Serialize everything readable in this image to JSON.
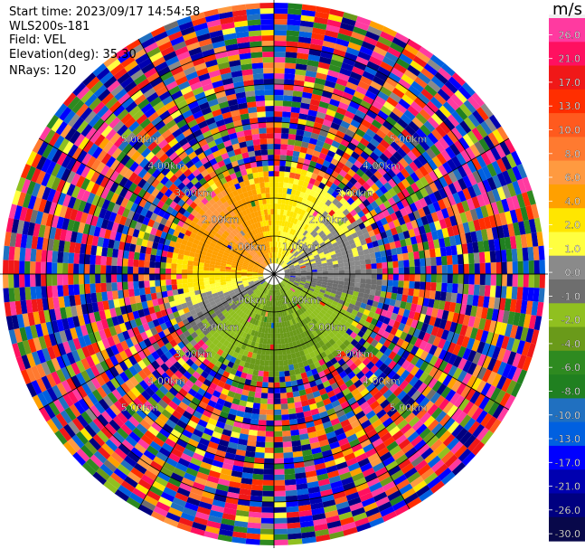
{
  "info": {
    "start_time": "Start time: 2023/09/17 14:54:58",
    "site": "WLS200s-181",
    "field": "Field: VEL",
    "elevation": "Elevation(deg): 35.30",
    "nrays": "NRays: 120"
  },
  "colorbar": {
    "unit": "m/s",
    "labels": [
      "26.0",
      "21.0",
      "17.0",
      "13.0",
      "10.0",
      "8.0",
      "6.0",
      "4.0",
      "2.0",
      "1.0",
      "0.0",
      "-1.0",
      "-2.0",
      "-4.0",
      "-6.0",
      "-8.0",
      "-10.0",
      "-13.0",
      "-17.0",
      "-21.0",
      "-26.0",
      "-30.0"
    ],
    "colors": [
      "#f0f0f0",
      "#ff3aa0",
      "#ff1060",
      "#f01818",
      "#ff2e00",
      "#ff5a1e",
      "#ff7a30",
      "#ff9a40",
      "#ffa000",
      "#ffe600",
      "#ffff40",
      "#8a8a8a",
      "#6e6e6e",
      "#90c020",
      "#6a9a1a",
      "#2e8a20",
      "#208020",
      "#2070c0",
      "#0060e0",
      "#0000ff",
      "#0000b0",
      "#000080",
      "#08084a"
    ]
  },
  "chart_data": {
    "type": "polar",
    "field": "VEL",
    "units": "m/s",
    "nrays": 120,
    "elevation_deg": 35.3,
    "range_labels_km": [
      "1.00km",
      "2.00km",
      "3.00km",
      "4.00km",
      "5.00km"
    ],
    "ring_labels": [
      {
        "ring": 1,
        "text": "1.00km"
      },
      {
        "ring": 2,
        "text": "2.00km"
      },
      {
        "ring": 3,
        "text": "3.00km"
      },
      {
        "ring": 4,
        "text": "4.00km"
      },
      {
        "ring": 5,
        "text": "5.00km"
      }
    ],
    "near_field_velocity_by_azimuth": [
      {
        "azimuth_deg": 0,
        "velocity_ms": 1.5
      },
      {
        "azimuth_deg": 45,
        "velocity_ms": 0.2
      },
      {
        "azimuth_deg": 90,
        "velocity_ms": -0.8
      },
      {
        "azimuth_deg": 135,
        "velocity_ms": -3.5
      },
      {
        "azimuth_deg": 180,
        "velocity_ms": -5.0
      },
      {
        "azimuth_deg": 225,
        "velocity_ms": -2.5
      },
      {
        "azimuth_deg": 270,
        "velocity_ms": 1.8
      },
      {
        "azimuth_deg": 315,
        "velocity_ms": 4.5
      }
    ],
    "colorbar_min": -30.0,
    "colorbar_max": 26.0
  }
}
